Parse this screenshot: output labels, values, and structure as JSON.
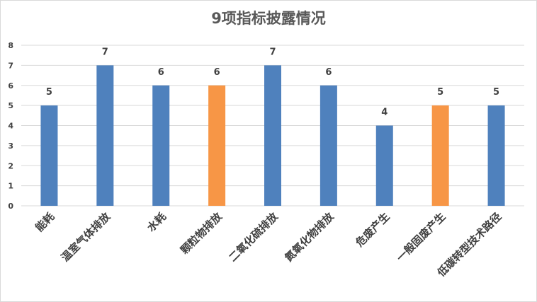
{
  "chart_data": {
    "type": "bar",
    "title": "9项指标披露情况",
    "xlabel": "",
    "ylabel": "",
    "ylim": [
      0,
      8
    ],
    "yticks": [
      0,
      1,
      2,
      3,
      4,
      5,
      6,
      7,
      8
    ],
    "grid": true,
    "legend": "none",
    "categories": [
      "能耗",
      "温室气体排放",
      "水耗",
      "颗粒物排放",
      "二氧化硫排放",
      "氮氧化物排放",
      "危废产生",
      "一般固废产生",
      "低碳转型技术路径"
    ],
    "values": [
      5,
      7,
      6,
      6,
      7,
      6,
      4,
      5,
      5
    ],
    "colors": [
      "#4f81bd",
      "#4f81bd",
      "#4f81bd",
      "#f79646",
      "#4f81bd",
      "#4f81bd",
      "#4f81bd",
      "#f79646",
      "#4f81bd"
    ]
  }
}
